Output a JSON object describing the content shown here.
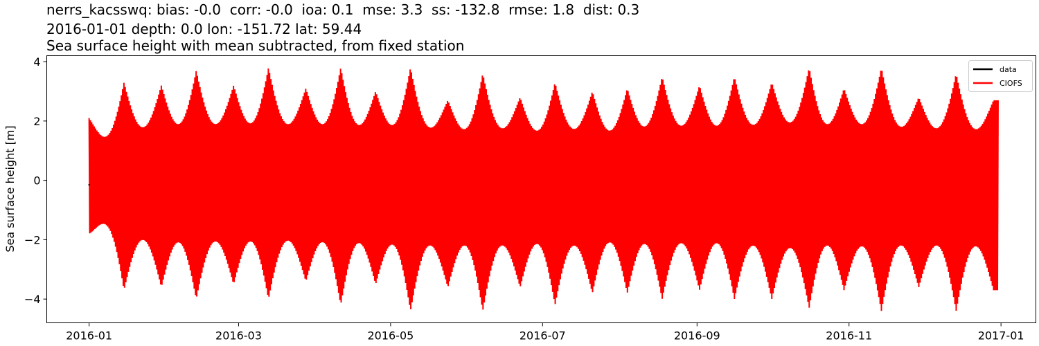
{
  "titles": {
    "line1": "nerrs_kacsswq: bias: -0.0  corr: -0.0  ioa: 0.1  mse: 3.3  ss: -132.8  rmse: 1.8  dist: 0.3",
    "line2": "2016-01-01 depth: 0.0 lon: -151.72 lat: 59.44",
    "line3": "Sea surface height with mean subtracted, from fixed station"
  },
  "chart_data": {
    "type": "line",
    "ylabel": "Sea surface height [m]",
    "xlabel": "",
    "xlim": [
      "2015-12-15",
      "2017-01-15"
    ],
    "ylim": [
      -4.8,
      4.2
    ],
    "x_ticks": [
      "2016-01",
      "2016-03",
      "2016-05",
      "2016-07",
      "2016-09",
      "2016-11",
      "2017-01"
    ],
    "y_ticks": [
      -4,
      -2,
      0,
      2,
      4
    ],
    "y_tick_labels": [
      "−4",
      "−2",
      "0",
      "2",
      "4"
    ],
    "grid": false,
    "legend": {
      "position": "top-right",
      "entries": [
        "data",
        "CIOFS"
      ]
    },
    "series": [
      {
        "name": "data",
        "color": "#000000",
        "x": [
          "2016-01-01"
        ],
        "values": [
          -0.15
        ]
      },
      {
        "name": "CIOFS",
        "color": "#ff0000",
        "x_start": "2016-01-01",
        "x_end": "2016-12-31",
        "envelope_peaks": [
          {
            "date": "2016-01-01",
            "max": 2.1,
            "min": -1.8
          },
          {
            "date": "2016-01-15",
            "max": 3.3,
            "min": -3.7
          },
          {
            "date": "2016-01-30",
            "max": 3.2,
            "min": -3.6
          },
          {
            "date": "2016-02-13",
            "max": 3.7,
            "min": -4.0
          },
          {
            "date": "2016-02-28",
            "max": 3.2,
            "min": -3.5
          },
          {
            "date": "2016-03-13",
            "max": 3.8,
            "min": -4.0
          },
          {
            "date": "2016-03-28",
            "max": 3.1,
            "min": -3.4
          },
          {
            "date": "2016-04-11",
            "max": 3.8,
            "min": -4.2
          },
          {
            "date": "2016-04-25",
            "max": 3.0,
            "min": -3.5
          },
          {
            "date": "2016-05-09",
            "max": 3.8,
            "min": -4.4
          },
          {
            "date": "2016-05-24",
            "max": 2.7,
            "min": -3.6
          },
          {
            "date": "2016-06-07",
            "max": 3.6,
            "min": -4.4
          },
          {
            "date": "2016-06-22",
            "max": 2.8,
            "min": -3.6
          },
          {
            "date": "2016-07-06",
            "max": 3.3,
            "min": -4.2
          },
          {
            "date": "2016-07-21",
            "max": 3.0,
            "min": -3.8
          },
          {
            "date": "2016-08-04",
            "max": 3.1,
            "min": -3.8
          },
          {
            "date": "2016-08-18",
            "max": 3.5,
            "min": -4.0
          },
          {
            "date": "2016-09-02",
            "max": 3.2,
            "min": -3.7
          },
          {
            "date": "2016-09-16",
            "max": 3.5,
            "min": -4.0
          },
          {
            "date": "2016-10-01",
            "max": 3.3,
            "min": -4.0
          },
          {
            "date": "2016-10-16",
            "max": 3.8,
            "min": -4.3
          },
          {
            "date": "2016-10-30",
            "max": 3.1,
            "min": -3.7
          },
          {
            "date": "2016-11-14",
            "max": 3.8,
            "min": -4.4
          },
          {
            "date": "2016-11-29",
            "max": 2.8,
            "min": -3.6
          },
          {
            "date": "2016-12-14",
            "max": 3.6,
            "min": -4.4
          },
          {
            "date": "2016-12-29",
            "max": 2.7,
            "min": -3.7
          }
        ]
      }
    ]
  }
}
